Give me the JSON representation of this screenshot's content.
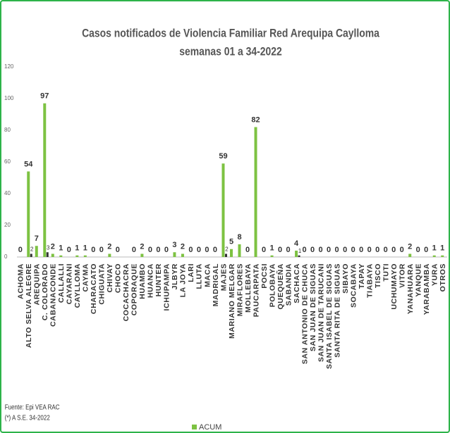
{
  "chart_data": {
    "type": "bar",
    "title": "Casos notificados  de Violencia Familiar Red Arequipa Caylloma",
    "subtitle": "semanas 01 a 34-2022",
    "source": "Fuente:  Epi VEA RAC",
    "note": "(*) A S.E. 34-2022",
    "categories": [
      "ACHOMA",
      "ALTO SELVA ALEGRE",
      "AREQUIPA",
      "C. COLORADO",
      "CABANACONDE",
      "CALLALLI",
      "CAYARANI",
      "CAYLLOMA",
      "CAYMA",
      "CHARACATO",
      "CHIGUATA",
      "CHIVAY",
      "CHOCO",
      "COCACHACRA",
      "COPORAQUE",
      "HUAMBO",
      "HUANCA",
      "HUNTER",
      "ICHUPAMPA",
      "JLBYR",
      "LA JOYA",
      "LARI",
      "LLUTA",
      "MACA",
      "MADRIGAL",
      "MAJES",
      "MARIANO MELGAR",
      "MIRAFLORES",
      "MOLLEBAYA",
      "PAUCARPATA",
      "POCSI",
      "POLOBAYA",
      "QUEQUEÑA",
      "SABANDIA",
      "SACHACA",
      "SAN ANTONIO DE CHUCA",
      "SAN JUAN DE SIGUAS",
      "SAN JUAN DE TARUCANI",
      "SANTA ISABEL DE SIGUAS",
      "SANTA RITA DE SIGUAS",
      "SIBAYO",
      "SOCABAYA",
      "TAPAY",
      "TIABAYA",
      "TISCO",
      "TUTI",
      "UCHUMAYO",
      "VITOR",
      "YANAHUARA",
      "YANQUE",
      "YARABAMBA",
      "YURA",
      "OTROS"
    ],
    "series": [
      {
        "name": "ACUM",
        "color": "#7dc242",
        "values": [
          0,
          54,
          7,
          97,
          2,
          1,
          0,
          1,
          1,
          0,
          0,
          2,
          0,
          null,
          0,
          2,
          0,
          0,
          0,
          3,
          2,
          0,
          0,
          0,
          0,
          59,
          5,
          8,
          0,
          82,
          0,
          1,
          0,
          0,
          4,
          0,
          0,
          0,
          0,
          0,
          0,
          0,
          0,
          0,
          0,
          0,
          0,
          0,
          2,
          0,
          0,
          1,
          1
        ]
      },
      {
        "color": "#333333",
        "values": [
          null,
          2,
          null,
          3,
          null,
          null,
          null,
          null,
          null,
          null,
          null,
          null,
          null,
          null,
          null,
          null,
          null,
          null,
          null,
          null,
          null,
          null,
          null,
          null,
          null,
          2,
          null,
          null,
          null,
          null,
          null,
          null,
          null,
          null,
          1,
          null,
          null,
          null,
          null,
          null,
          null,
          null,
          null,
          null,
          null,
          null,
          null,
          null,
          null,
          null,
          null,
          null,
          null
        ]
      }
    ],
    "ylim": [
      0,
      120
    ],
    "yticks": [
      0,
      20,
      40,
      60,
      80,
      100,
      120
    ],
    "grid": false,
    "legend": "bottom"
  }
}
